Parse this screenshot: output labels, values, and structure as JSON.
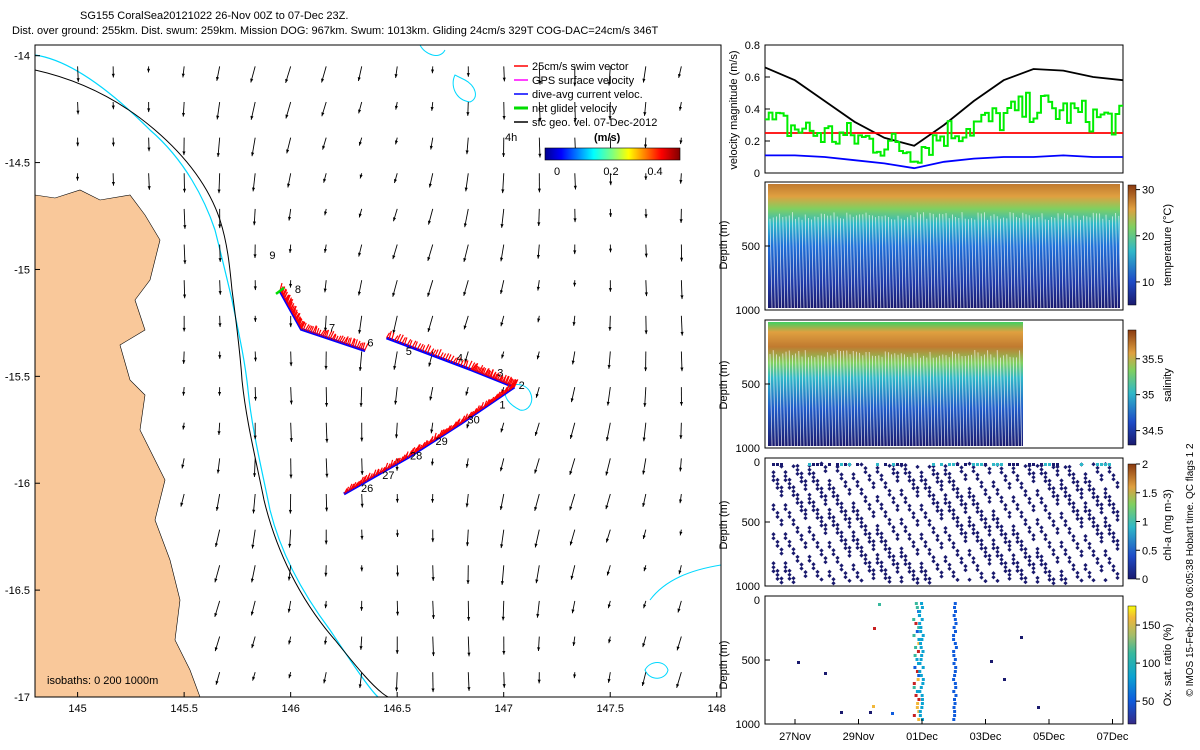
{
  "header": {
    "title": "SG155 CoralSea20121022 26-Nov 00Z to 07-Dec 23Z.",
    "subtitle": "Dist. over ground: 255km. Dist. swum: 259km. Mission DOG: 967km. Swum: 1013km. Gliding 24cm/s 329T COG-DAC=24cm/s 346T"
  },
  "map": {
    "lon_range": [
      144.8,
      148.02
    ],
    "lat_range": [
      -17.0,
      -13.95
    ],
    "lon_ticks": [
      "145",
      "145.5",
      "146",
      "146.5",
      "147",
      "147.5",
      "148"
    ],
    "lat_ticks": [
      "-14",
      "-14.5",
      "-15",
      "-15.5",
      "-16",
      "-16.5",
      "-17"
    ],
    "isobaths_label": "isobaths: 0   200  1000m",
    "legend": [
      {
        "label": "25cm/s swim vector",
        "color": "#ff0000"
      },
      {
        "label": "GPS surface velocity",
        "color": "#ff00ff"
      },
      {
        "label": "dive-avg current veloc.",
        "color": "#0000ff"
      },
      {
        "label": "net glider velocity",
        "color": "#00dd00"
      },
      {
        "label": "sfc geo. vel. 07-Dec-2012",
        "color": "#000000"
      }
    ],
    "tag_4h": "4h",
    "colorbar": {
      "label": "(m/s)",
      "ticks": [
        "0",
        "0.2",
        "0.4"
      ],
      "range": [
        0,
        0.5
      ]
    },
    "track": [
      [
        145.95,
        -15.1
      ],
      [
        146.05,
        -15.28
      ],
      [
        146.35,
        -15.38
      ],
      [
        146.45,
        -15.32
      ],
      [
        146.85,
        -15.47
      ],
      [
        147.05,
        -15.55
      ],
      [
        146.8,
        -15.72
      ],
      [
        146.55,
        -15.88
      ],
      [
        146.25,
        -16.05
      ]
    ],
    "day_labels": [
      {
        "t": "8",
        "lon": 146.02,
        "lat": -15.11
      },
      {
        "t": "7",
        "lon": 146.18,
        "lat": -15.29
      },
      {
        "t": "6",
        "lon": 146.36,
        "lat": -15.36
      },
      {
        "t": "5",
        "lon": 146.54,
        "lat": -15.4
      },
      {
        "t": "4",
        "lon": 146.78,
        "lat": -15.43
      },
      {
        "t": "3",
        "lon": 146.97,
        "lat": -15.5
      },
      {
        "t": "2",
        "lon": 147.07,
        "lat": -15.56
      },
      {
        "t": "1",
        "lon": 146.98,
        "lat": -15.65
      },
      {
        "t": "30",
        "lon": 146.83,
        "lat": -15.72
      },
      {
        "t": "29",
        "lon": 146.68,
        "lat": -15.82
      },
      {
        "t": "28",
        "lon": 146.56,
        "lat": -15.89
      },
      {
        "t": "27",
        "lon": 146.43,
        "lat": -15.98
      },
      {
        "t": "26",
        "lon": 146.33,
        "lat": -16.04
      },
      {
        "t": "9",
        "lon": 145.9,
        "lat": -14.95
      }
    ]
  },
  "chart_data": [
    {
      "type": "line",
      "ylabel": "velocity magnitude (m/s)",
      "ylim": [
        0,
        0.8
      ],
      "yticks": [
        "0",
        "0.2",
        "0.4",
        "0.6",
        "0.8"
      ],
      "x": [
        0,
        1,
        2,
        3,
        4,
        5,
        6,
        7,
        8,
        9,
        10,
        11,
        12
      ],
      "series": [
        {
          "values": [
            0.66,
            0.58,
            0.45,
            0.32,
            0.22,
            0.17,
            0.3,
            0.45,
            0.58,
            0.65,
            0.64,
            0.6,
            0.58
          ],
          "color": "#000000"
        },
        {
          "values": [
            0.25,
            0.25,
            0.25,
            0.25,
            0.25,
            0.25,
            0.25,
            0.25,
            0.25,
            0.25,
            0.25,
            0.25,
            0.25
          ],
          "color": "#ff0000"
        },
        {
          "values": [
            0.32,
            0.28,
            0.24,
            0.22,
            0.18,
            0.14,
            0.25,
            0.3,
            0.35,
            0.42,
            0.38,
            0.35,
            0.32
          ],
          "color": "#00ee00"
        },
        {
          "values": [
            0.11,
            0.11,
            0.1,
            0.08,
            0.06,
            0.03,
            0.07,
            0.09,
            0.1,
            0.1,
            0.11,
            0.1,
            0.1
          ],
          "color": "#0000ff"
        }
      ]
    },
    {
      "type": "scatter",
      "ylabel": "Depth (m)",
      "colorbar_label": "temperature (°C)",
      "ticks": [
        "10",
        "20",
        "30"
      ],
      "cbar_range": [
        5,
        31
      ],
      "yticks": [
        "500",
        "1000"
      ]
    },
    {
      "type": "scatter",
      "ylabel": "Depth (m)",
      "colorbar_label": "salinity",
      "ticks": [
        "34.5",
        "35",
        "35.5"
      ],
      "cbar_range": [
        34.3,
        35.9
      ],
      "yticks": [
        "500",
        "1000"
      ]
    },
    {
      "type": "scatter",
      "ylabel": "Depth (m)",
      "colorbar_label": "chl-a (mg m-3)",
      "ticks": [
        "0",
        "0.5",
        "1",
        "1.5",
        "2"
      ],
      "cbar_range": [
        0,
        2
      ],
      "yticks": [
        "0",
        "500",
        "1000"
      ]
    },
    {
      "type": "scatter",
      "ylabel": "Depth (m)",
      "colorbar_label": "Ox. sat. ratio (%)",
      "ticks": [
        "50",
        "100",
        "150"
      ],
      "cbar_range": [
        20,
        175
      ],
      "yticks": [
        "0",
        "500",
        "1000"
      ],
      "xticks": [
        "27Nov",
        "29Nov",
        "01Dec",
        "03Dec",
        "05Dec",
        "07Dec"
      ]
    }
  ],
  "footer_credit": "© IMOS 15-Feb-2019 06:05:38 Hobart time. QC flags 1  2"
}
